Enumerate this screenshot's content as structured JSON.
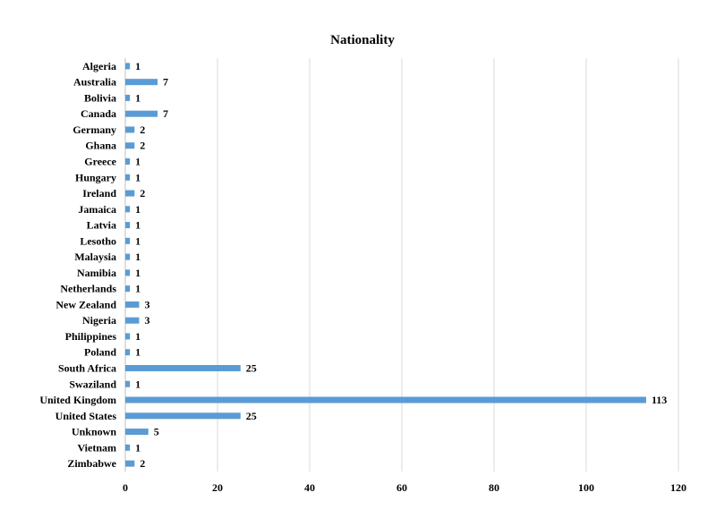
{
  "chart_data": {
    "type": "bar",
    "orientation": "horizontal",
    "title": "Nationality",
    "categories": [
      "Algeria",
      "Australia",
      "Bolivia",
      "Canada",
      "Germany",
      "Ghana",
      "Greece",
      "Hungary",
      "Ireland",
      "Jamaica",
      "Latvia",
      "Lesotho",
      "Malaysia",
      "Namibia",
      "Netherlands",
      "New Zealand",
      "Nigeria",
      "Philippines",
      "Poland",
      "South Africa",
      "Swaziland",
      "United Kingdom",
      "United States",
      "Unknown",
      "Vietnam",
      "Zimbabwe"
    ],
    "values": [
      1,
      7,
      1,
      7,
      2,
      2,
      1,
      1,
      2,
      1,
      1,
      1,
      1,
      1,
      1,
      3,
      3,
      1,
      1,
      25,
      1,
      113,
      25,
      5,
      1,
      2
    ],
    "xlim": [
      0,
      120
    ],
    "xticks": [
      0,
      20,
      40,
      60,
      80,
      100,
      120
    ],
    "grid": true,
    "legend": "none",
    "bar_color": "#5b9bd5"
  }
}
